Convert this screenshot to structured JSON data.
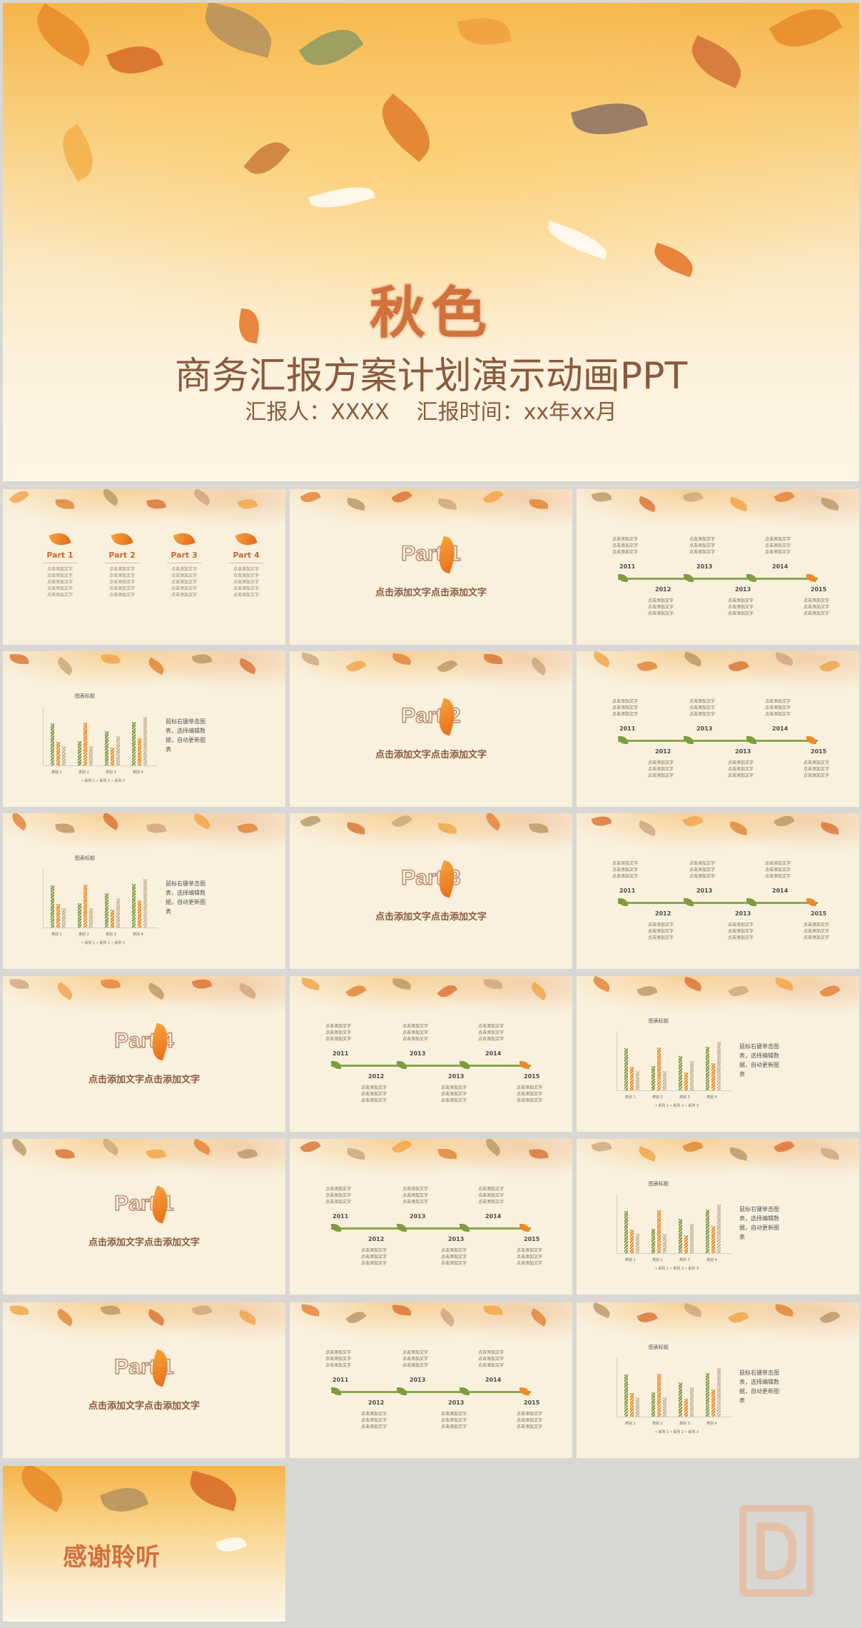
{
  "hero": {
    "title": "秋色",
    "subtitle": "商务汇报方案计划演示动画PPT",
    "meta": "汇报人：XXXX    汇报时间：xx年xx月"
  },
  "slides": {
    "parts_overview": {
      "items": [
        {
          "label": "Part 1",
          "lines": [
            "点击添加文字",
            "点击添加文字",
            "点击添加文字",
            "点击添加文字",
            "点击添加文字"
          ]
        },
        {
          "label": "Part 2",
          "lines": [
            "点击添加文字",
            "点击添加文字",
            "点击添加文字",
            "点击添加文字",
            "点击添加文字"
          ]
        },
        {
          "label": "Part 3",
          "lines": [
            "点击添加文字",
            "点击添加文字",
            "点击添加文字",
            "点击添加文字",
            "点击添加文字"
          ]
        },
        {
          "label": "Part 4",
          "lines": [
            "点击添加文字",
            "点击添加文字",
            "点击添加文字",
            "点击添加文字",
            "点击添加文字"
          ]
        }
      ]
    },
    "section_subtitle": "点击添加文字点击添加文字",
    "section_labels": [
      "Part 1",
      "Part 2",
      "Part 3",
      "Part 4",
      "Part 1",
      "Part 1"
    ],
    "timeline": {
      "top_years": [
        "2011",
        "2013",
        "2014"
      ],
      "bottom_years": [
        "2012",
        "2013",
        "2015"
      ],
      "text": "点击添加文字"
    },
    "chart": {
      "title": "图表标题",
      "note": "鼠标右键单击图表，选择编辑数据，自动更新图表",
      "categories": [
        "类别 1",
        "类别 2",
        "类别 3",
        "类别 4"
      ],
      "legend": "• 系列 1  • 系列 2  • 系列 3"
    },
    "thanks": "感谢聆听"
  },
  "chart_data": {
    "type": "bar",
    "title": "图表标题",
    "categories": [
      "类别 1",
      "类别 2",
      "类别 3",
      "类别 4"
    ],
    "series": [
      {
        "name": "系列 1",
        "values": [
          4.3,
          2.5,
          3.5,
          4.5
        ]
      },
      {
        "name": "系列 2",
        "values": [
          2.4,
          4.4,
          1.8,
          2.8
        ]
      },
      {
        "name": "系列 3",
        "values": [
          2,
          2,
          3,
          5
        ]
      }
    ],
    "ylim": [
      0,
      6
    ],
    "colors": [
      "#7e9b3f",
      "#ef8a2a",
      "#c9b49a"
    ]
  }
}
